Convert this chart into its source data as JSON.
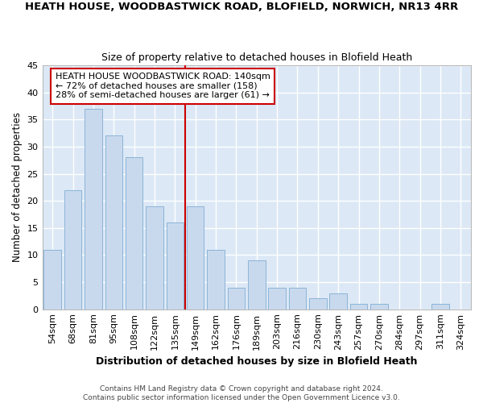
{
  "title1": "HEATH HOUSE, WOODBASTWICK ROAD, BLOFIELD, NORWICH, NR13 4RR",
  "title2": "Size of property relative to detached houses in Blofield Heath",
  "xlabel": "Distribution of detached houses by size in Blofield Heath",
  "ylabel": "Number of detached properties",
  "bins": [
    "54sqm",
    "68sqm",
    "81sqm",
    "95sqm",
    "108sqm",
    "122sqm",
    "135sqm",
    "149sqm",
    "162sqm",
    "176sqm",
    "189sqm",
    "203sqm",
    "216sqm",
    "230sqm",
    "243sqm",
    "257sqm",
    "270sqm",
    "284sqm",
    "297sqm",
    "311sqm",
    "324sqm"
  ],
  "values": [
    11,
    22,
    37,
    32,
    28,
    19,
    16,
    19,
    11,
    4,
    9,
    4,
    4,
    2,
    3,
    1,
    1,
    0,
    0,
    1,
    0
  ],
  "bar_color": "#c9d9ed",
  "bar_edge_color": "#8ab4d8",
  "vline_color": "#cc0000",
  "annotation_text": "HEATH HOUSE WOODBASTWICK ROAD: 140sqm\n← 72% of detached houses are smaller (158)\n28% of semi-detached houses are larger (61) →",
  "annotation_box_color": "#ffffff",
  "annotation_box_edge": "#cc0000",
  "ylim": [
    0,
    45
  ],
  "yticks": [
    0,
    5,
    10,
    15,
    20,
    25,
    30,
    35,
    40,
    45
  ],
  "footnote": "Contains HM Land Registry data © Crown copyright and database right 2024.\nContains public sector information licensed under the Open Government Licence v3.0.",
  "fig_bg_color": "#ffffff",
  "plot_bg_color": "#dce8f5",
  "grid_color": "#ffffff",
  "title1_fontsize": 9.5,
  "title2_fontsize": 9,
  "xlabel_fontsize": 9,
  "ylabel_fontsize": 8.5,
  "tick_fontsize": 8,
  "annot_fontsize": 8,
  "footnote_fontsize": 6.5
}
